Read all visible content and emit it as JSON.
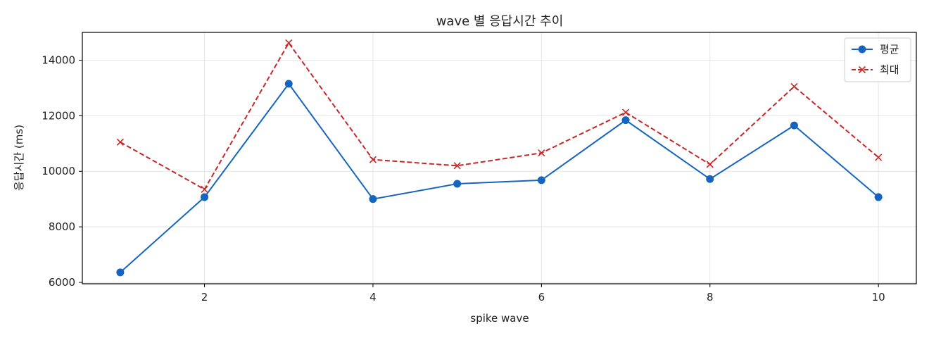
{
  "chart_data": {
    "type": "line",
    "title": "wave 별 응답시간 추이",
    "xlabel": "spike wave",
    "ylabel": "응답시간 (ms)",
    "x": [
      1,
      2,
      3,
      4,
      5,
      6,
      7,
      8,
      9,
      10
    ],
    "xlim": [
      0.55,
      10.45
    ],
    "ylim": [
      5950,
      15000
    ],
    "xticks": [
      2,
      4,
      6,
      8,
      10
    ],
    "yticks": [
      6000,
      8000,
      10000,
      12000,
      14000
    ],
    "grid": true,
    "legend_position": "top-right",
    "series": [
      {
        "name": "평균",
        "color": "#1565c0",
        "style": "solid",
        "marker": "circle",
        "values": [
          6360,
          9070,
          13150,
          9000,
          9550,
          9680,
          11840,
          9720,
          11650,
          9070
        ]
      },
      {
        "name": "최대",
        "color": "#c62828",
        "style": "dashed",
        "marker": "x",
        "values": [
          11050,
          9350,
          14620,
          10420,
          10200,
          10660,
          12120,
          10250,
          13050,
          10500
        ]
      }
    ]
  }
}
